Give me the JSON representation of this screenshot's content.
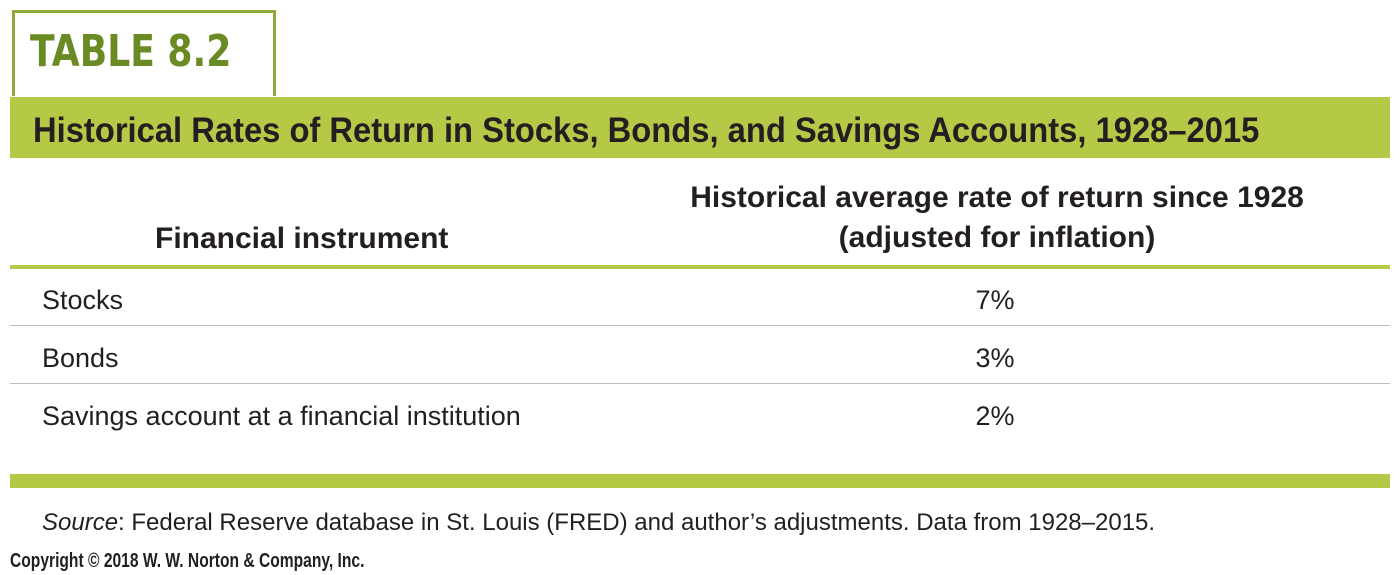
{
  "table_label": "TABLE 8.2",
  "title": "Historical Rates of Return in Stocks, Bonds, and Savings Accounts, 1928–2015",
  "headers": {
    "instrument": "Financial instrument",
    "rate_line1": "Historical average rate of return since 1928",
    "rate_line2": "(adjusted for inflation)"
  },
  "rows": [
    {
      "instrument": "Stocks",
      "rate": "7%"
    },
    {
      "instrument": "Bonds",
      "rate": "3%"
    },
    {
      "instrument": "Savings account at a financial institution",
      "rate": "2%"
    }
  ],
  "source": {
    "label": "Source",
    "text": ": Federal Reserve database in St. Louis (FRED) and author’s adjustments. Data from 1928–2015."
  },
  "copyright": "Copyright © 2018 W. W. Norton & Company, Inc.",
  "colors": {
    "accent_green": "#b5c947",
    "label_green": "#6a8a23"
  }
}
